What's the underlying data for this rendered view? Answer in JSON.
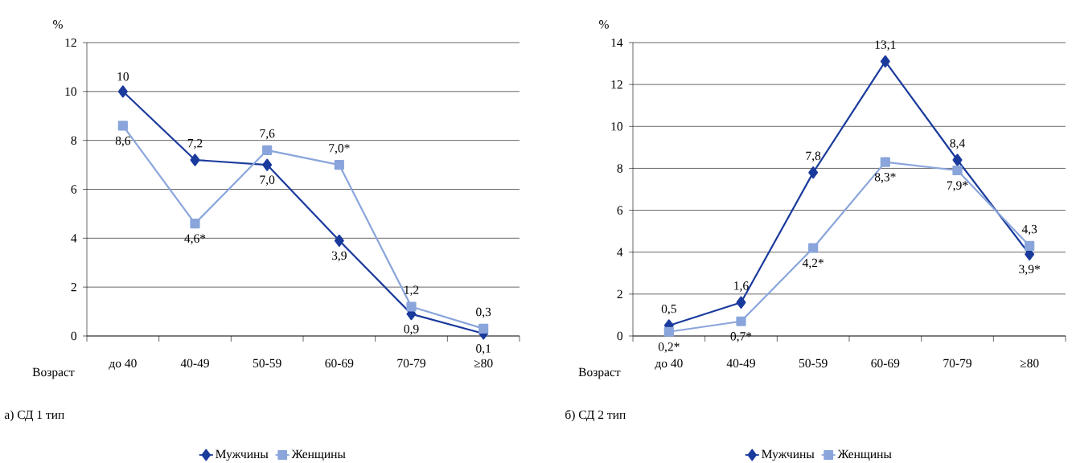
{
  "chart_data": [
    {
      "type": "line",
      "title": "а) СД 1 тип",
      "xlabel": "Возраст",
      "ylabel": "%",
      "categories": [
        "до 40",
        "40-49",
        "50-59",
        "60-69",
        "70-79",
        "≥80"
      ],
      "ylim": [
        0,
        12
      ],
      "yticks": [
        0,
        2,
        4,
        6,
        8,
        10,
        12
      ],
      "grid": "y",
      "legend": "bottom",
      "series": [
        {
          "name": "Мужчины",
          "color": "#1a3a9c",
          "marker": "diamond",
          "values": [
            10,
            7.2,
            7.0,
            3.9,
            0.9,
            0.1
          ],
          "value_labels": [
            "10",
            "7,2",
            "7,0",
            "3,9",
            "0,9",
            "0,1"
          ]
        },
        {
          "name": "Женщины",
          "color": "#8aa5db",
          "marker": "square",
          "values": [
            8.6,
            4.6,
            7.6,
            7.0,
            1.2,
            0.3
          ],
          "value_labels": [
            "8,6",
            "4,6*",
            "7,6",
            "7,0*",
            "1,2",
            "0,3"
          ]
        }
      ]
    },
    {
      "type": "line",
      "title": "б) СД 2 тип",
      "xlabel": "Возраст",
      "ylabel": "%",
      "categories": [
        "до 40",
        "40-49",
        "50-59",
        "60-69",
        "70-79",
        "≥80"
      ],
      "ylim": [
        0,
        14
      ],
      "yticks": [
        0,
        2,
        4,
        6,
        8,
        10,
        12,
        14
      ],
      "grid": "y",
      "legend": "bottom",
      "series": [
        {
          "name": "Мужчины",
          "color": "#1a3a9c",
          "marker": "diamond",
          "values": [
            0.5,
            1.6,
            7.8,
            13.1,
            8.4,
            3.9
          ],
          "value_labels": [
            "0,5",
            "1,6",
            "7,8",
            "13,1",
            "8,4",
            "3,9*"
          ]
        },
        {
          "name": "Женщины",
          "color": "#8aa5db",
          "marker": "square",
          "values": [
            0.2,
            0.7,
            4.2,
            8.3,
            7.9,
            4.3
          ],
          "value_labels": [
            "0,2*",
            "0,7*",
            "4,2*",
            "8,3*",
            "7,9*",
            "4,3"
          ]
        }
      ]
    }
  ]
}
